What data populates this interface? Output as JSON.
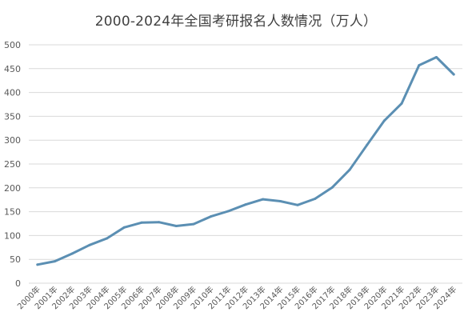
{
  "chart_data": {
    "type": "line",
    "title": "2000-2024年全国考研报名人数情况（万人）",
    "xlabel": "",
    "ylabel": "",
    "categories": [
      "2000年",
      "2001年",
      "2002年",
      "2003年",
      "2004年",
      "2005年",
      "2006年",
      "2007年",
      "2008年",
      "2009年",
      "2010年",
      "2011年",
      "2012年",
      "2013年",
      "2014年",
      "2015年",
      "2016年",
      "2017年",
      "2018年",
      "2019年",
      "2020年",
      "2021年",
      "2022年",
      "2023年",
      "2024年"
    ],
    "series": [
      {
        "values": [
          39,
          46,
          62,
          80,
          94,
          117,
          127,
          128,
          120,
          124,
          140,
          151,
          165,
          176,
          172,
          164,
          177,
          201,
          238,
          290,
          341,
          377,
          457,
          474,
          438
        ]
      }
    ],
    "ylim": [
      0,
      500
    ],
    "yticks": [
      0,
      50,
      100,
      150,
      200,
      250,
      300,
      350,
      400,
      450,
      500
    ],
    "grid": true,
    "legend": "none",
    "colors": {
      "line": "#5b8fb3",
      "grid": "#d9d9d9",
      "text": "#595959"
    }
  }
}
